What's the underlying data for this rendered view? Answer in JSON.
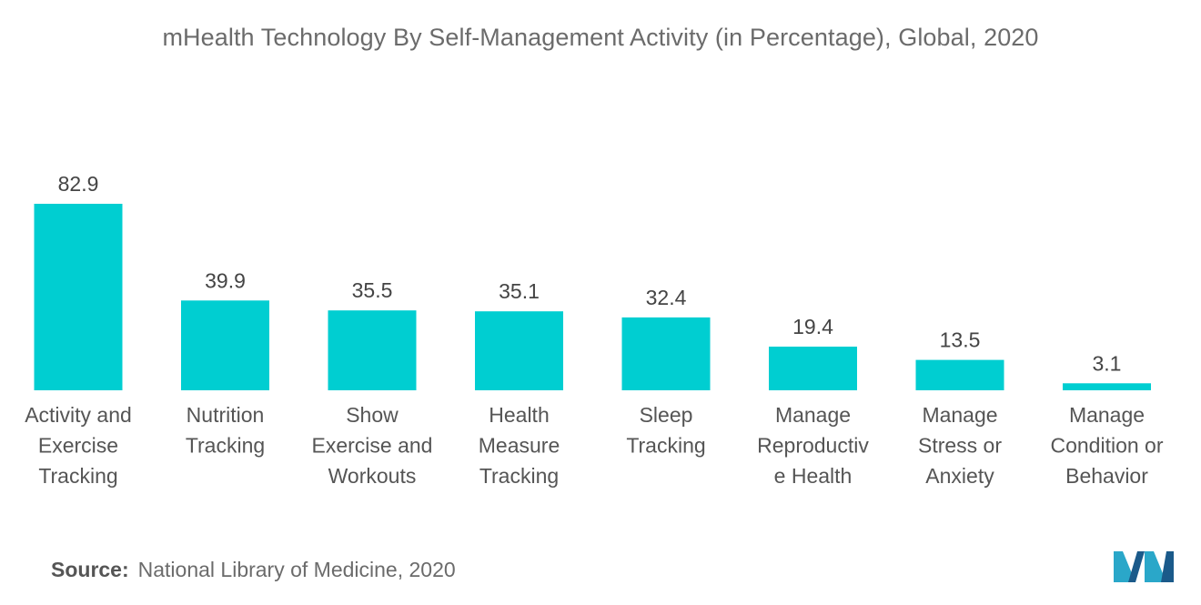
{
  "chart_data": {
    "type": "bar",
    "title": "mHealth Technology By Self-Management Activity (in Percentage), Global, 2020",
    "categories": [
      [
        "Activity and",
        "Exercise",
        "Tracking"
      ],
      [
        "Nutrition",
        "Tracking"
      ],
      [
        "Show",
        "Exercise and",
        "Workouts"
      ],
      [
        "Health",
        "Measure",
        "Tracking"
      ],
      [
        "Sleep",
        "Tracking"
      ],
      [
        "Manage",
        "Reproductiv",
        "e Health"
      ],
      [
        "Manage",
        "Stress or",
        "Anxiety"
      ],
      [
        "Manage",
        "Condition or",
        "Behavior"
      ]
    ],
    "values": [
      82.9,
      39.9,
      35.5,
      35.1,
      32.4,
      19.4,
      13.5,
      3.1
    ],
    "value_labels": [
      "82.9",
      "39.9",
      "35.5",
      "35.1",
      "32.4",
      "19.4",
      "13.5",
      "3.1"
    ],
    "ylim": [
      0,
      82.9
    ],
    "grid": false,
    "axes_visible": false,
    "bar_color": "#00CED1"
  },
  "source": {
    "label": "Source:",
    "text": "National Library of Medicine, 2020"
  },
  "logo": {
    "icon": "company-logo-icon",
    "colors": [
      "#1b5a8a",
      "#2aa7c9"
    ]
  }
}
